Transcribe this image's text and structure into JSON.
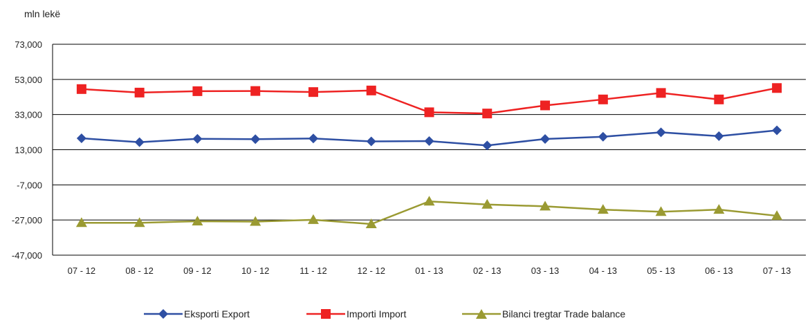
{
  "chart_data": {
    "type": "line",
    "unit_label": "mln lekë",
    "categories": [
      "07 - 12",
      "08 - 12",
      "09 - 12",
      "10 - 12",
      "11 - 12",
      "12 - 12",
      "01 - 13",
      "02 - 13",
      "03 - 13",
      "04 - 13",
      "05 - 13",
      "06 - 13",
      "07 - 13"
    ],
    "y_ticks": [
      "73,000",
      "53,000",
      "33,000",
      "13,000",
      "-7,000",
      "-27,000",
      "-47,000"
    ],
    "ylim": [
      -47000,
      73000
    ],
    "grid": true,
    "legend_position": "bottom",
    "series": [
      {
        "name": "Eksporti Export",
        "color": "#2e4fa3",
        "marker": "diamond",
        "values": [
          19500,
          17300,
          19200,
          19000,
          19400,
          17700,
          17900,
          15400,
          19100,
          20400,
          22900,
          20700,
          24000
        ]
      },
      {
        "name": "Importi Import",
        "color": "#ee2222",
        "marker": "square",
        "values": [
          47500,
          45500,
          46300,
          46400,
          45800,
          46700,
          34300,
          33600,
          38200,
          41600,
          45300,
          41600,
          48100
        ]
      },
      {
        "name": "Bilanci tregtar Trade balance",
        "color": "#9a9a32",
        "marker": "triangle",
        "values": [
          -28600,
          -28600,
          -27700,
          -27900,
          -26900,
          -29300,
          -16400,
          -18200,
          -19200,
          -21100,
          -22300,
          -21100,
          -24600
        ]
      }
    ]
  }
}
